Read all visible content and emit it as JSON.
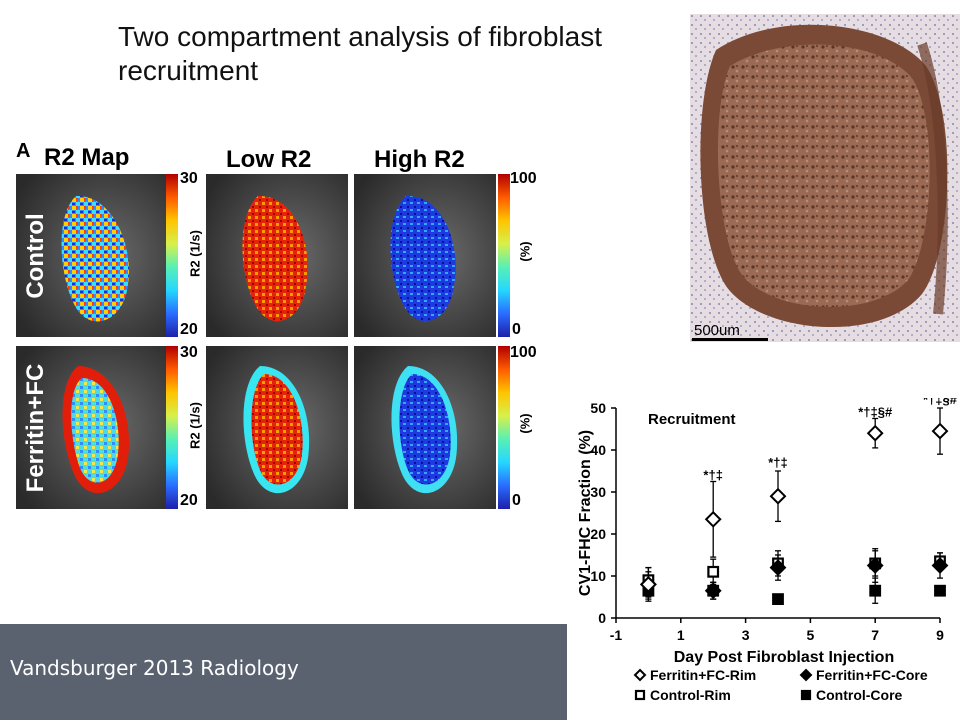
{
  "slide": {
    "title": "Two compartment analysis of fibroblast recruitment",
    "footer": "Vandsburger 2013 Radiology"
  },
  "figure_a": {
    "panel_letter": "A",
    "column_titles": [
      "R2 Map",
      "Low R2",
      "High R2"
    ],
    "row_labels": [
      "Control",
      "Ferritin+FC"
    ],
    "r2_colorbar": {
      "max": "30",
      "min": "20",
      "unit": "R2 (1/s)"
    },
    "pct_colorbar": {
      "max": "100",
      "min": "0",
      "unit": "(%)"
    }
  },
  "histology": {
    "scale_label": "500um"
  },
  "chart_data": {
    "type": "scatter",
    "title": "Recruitment",
    "xlabel": "Day Post Fibroblast Injection",
    "ylabel": "CV1-FHC Fraction (%)",
    "xlim": [
      -1,
      9
    ],
    "ylim": [
      0,
      50
    ],
    "xticks": [
      "-1",
      "1",
      "3",
      "5",
      "7",
      "9"
    ],
    "yticks": [
      "0",
      "10",
      "20",
      "30",
      "40",
      "50"
    ],
    "grid": false,
    "legend_position": "bottom",
    "series": [
      {
        "name": "Ferritin+FC-Rim",
        "marker": "open-diamond",
        "x": [
          0,
          2,
          4,
          7,
          9
        ],
        "y": [
          8,
          23.5,
          29,
          44,
          44.5
        ],
        "err": [
          4,
          9,
          6,
          3.5,
          5.5
        ]
      },
      {
        "name": "Ferritin+FC-Core",
        "marker": "filled-diamond",
        "x": [
          0,
          2,
          4,
          7,
          9
        ],
        "y": [
          8,
          6.5,
          12,
          12.5,
          12.5
        ],
        "err": [
          3,
          2,
          3,
          4,
          3
        ]
      },
      {
        "name": "Control-Rim",
        "marker": "open-square",
        "x": [
          0,
          2,
          4,
          7,
          9
        ],
        "y": [
          9,
          11,
          13,
          13,
          13.5
        ],
        "err": [
          3,
          3,
          3,
          3,
          2
        ]
      },
      {
        "name": "Control-Core",
        "marker": "filled-square",
        "x": [
          0,
          2,
          4,
          7,
          9
        ],
        "y": [
          6.5,
          6.5,
          4.5,
          6.5,
          6.5
        ],
        "err": [
          2,
          2,
          1,
          3,
          1
        ]
      }
    ],
    "annotations": [
      {
        "x": 2,
        "y": 33,
        "text": "*†‡"
      },
      {
        "x": 4,
        "y": 36,
        "text": "*†‡"
      },
      {
        "x": 7,
        "y": 48,
        "text": "*†‡§#"
      },
      {
        "x": 9,
        "y": 51,
        "text": "*†‡§#"
      }
    ]
  },
  "colors": {
    "footer_bg": "#5a6270",
    "mri_bg": "#1d1d1d",
    "histology_stain": "#7a4a36"
  }
}
